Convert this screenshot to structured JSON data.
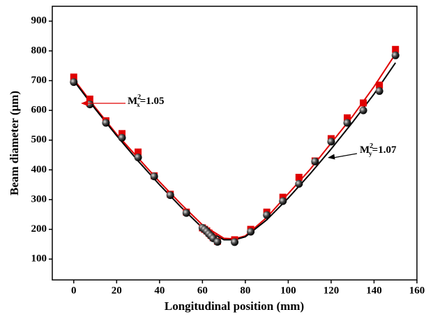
{
  "chart_data": {
    "type": "scatter",
    "xlabel": "Longitudinal position (mm)",
    "ylabel": "Beam diameter (μm)",
    "xlim": [
      -10,
      160
    ],
    "xticks": [
      0,
      20,
      40,
      60,
      80,
      100,
      120,
      140,
      160
    ],
    "ylim": [
      30,
      950
    ],
    "yticks": [
      100,
      200,
      300,
      400,
      500,
      600,
      700,
      800,
      900
    ],
    "series": [
      {
        "color": "#e00000",
        "marker": "square",
        "x": [
          0,
          7.5,
          15,
          22.5,
          30,
          37.5,
          45,
          52.5,
          60,
          61,
          62,
          63,
          64,
          65,
          67,
          75,
          82.5,
          90,
          97.5,
          105,
          112.5,
          120,
          127.5,
          135,
          142.5,
          150
        ],
        "values": [
          712,
          638,
          565,
          522,
          460,
          380,
          318,
          258,
          205,
          200,
          195,
          188,
          180,
          172,
          160,
          165,
          200,
          258,
          308,
          375,
          430,
          505,
          575,
          625,
          685,
          805
        ]
      },
      {
        "color": "#000000",
        "marker": "circle",
        "x": [
          0,
          7.5,
          15,
          22.5,
          30,
          37.5,
          45,
          52.5,
          60,
          61,
          62,
          63,
          64,
          65,
          67,
          75,
          82.5,
          90,
          97.5,
          105,
          112.5,
          120,
          127.5,
          135,
          142.5,
          150
        ],
        "values": [
          695,
          620,
          558,
          508,
          442,
          378,
          315,
          255,
          205,
          200,
          193,
          185,
          178,
          170,
          158,
          157,
          192,
          248,
          295,
          353,
          428,
          495,
          558,
          600,
          665,
          785
        ]
      }
    ],
    "fits": [
      {
        "color": "#e00000",
        "x": [
          0,
          10,
          20,
          30,
          40,
          50,
          60,
          70,
          75,
          80,
          90,
          100,
          110,
          120,
          130,
          140,
          150
        ],
        "values": [
          705,
          610,
          520,
          440,
          360,
          285,
          215,
          170,
          168,
          178,
          240,
          320,
          400,
          490,
          580,
          680,
          790
        ]
      },
      {
        "color": "#000000",
        "x": [
          0,
          10,
          20,
          30,
          40,
          50,
          60,
          70,
          75,
          80,
          90,
          100,
          110,
          120,
          130,
          140,
          150
        ],
        "values": [
          700,
          605,
          515,
          430,
          350,
          275,
          205,
          165,
          165,
          175,
          232,
          305,
          385,
          470,
          560,
          655,
          760
        ]
      }
    ],
    "annotations": [
      {
        "base": "M",
        "sup": "2",
        "sub": "x",
        "rest": "=1.05",
        "color": "#e00000"
      },
      {
        "base": "M",
        "sup": "2",
        "sub": "y",
        "rest": "=1.07",
        "color": "#000000"
      }
    ]
  }
}
